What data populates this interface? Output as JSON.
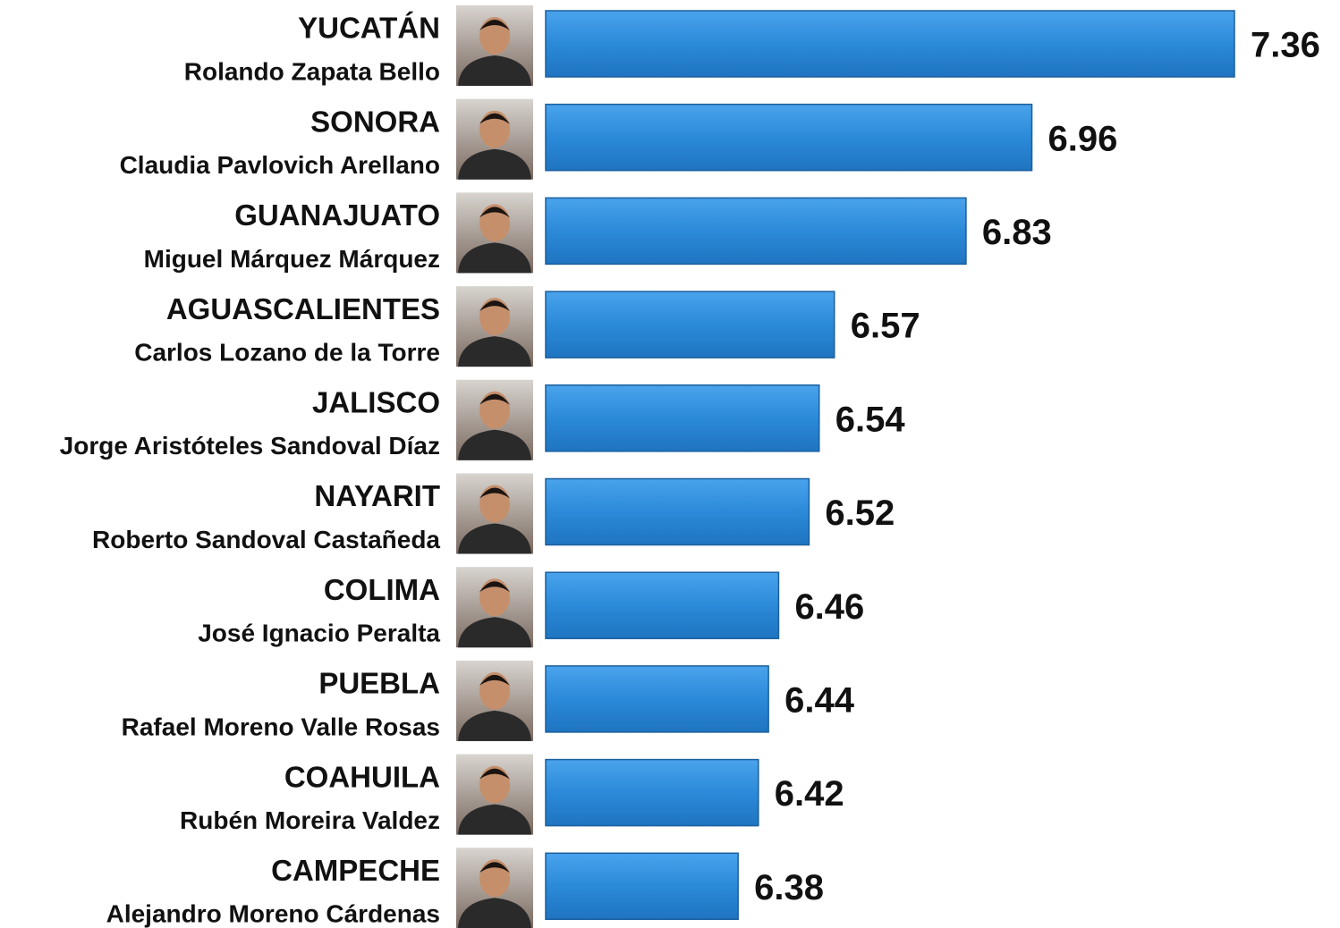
{
  "chart_data": {
    "type": "bar",
    "orientation": "horizontal",
    "categories": [
      "YUCATÁN",
      "SONORA",
      "GUANAJUATO",
      "AGUASCALIENTES",
      "JALISCO",
      "NAYARIT",
      "COLIMA",
      "PUEBLA",
      "COAHUILA",
      "CAMPECHE"
    ],
    "people": [
      "Rolando Zapata Bello",
      "Claudia Pavlovich Arellano",
      "Miguel Márquez Márquez",
      "Carlos Lozano de la Torre",
      "Jorge Aristóteles Sandoval Díaz",
      "Roberto Sandoval Castañeda",
      "José Ignacio Peralta",
      "Rafael Moreno Valle Rosas",
      "Rubén Moreira Valdez",
      "Alejandro Moreno Cárdenas"
    ],
    "values": [
      7.36,
      6.96,
      6.83,
      6.57,
      6.54,
      6.52,
      6.46,
      6.44,
      6.42,
      6.38
    ],
    "color": "#2b8ad9",
    "xlim": [
      6,
      7.36
    ]
  }
}
